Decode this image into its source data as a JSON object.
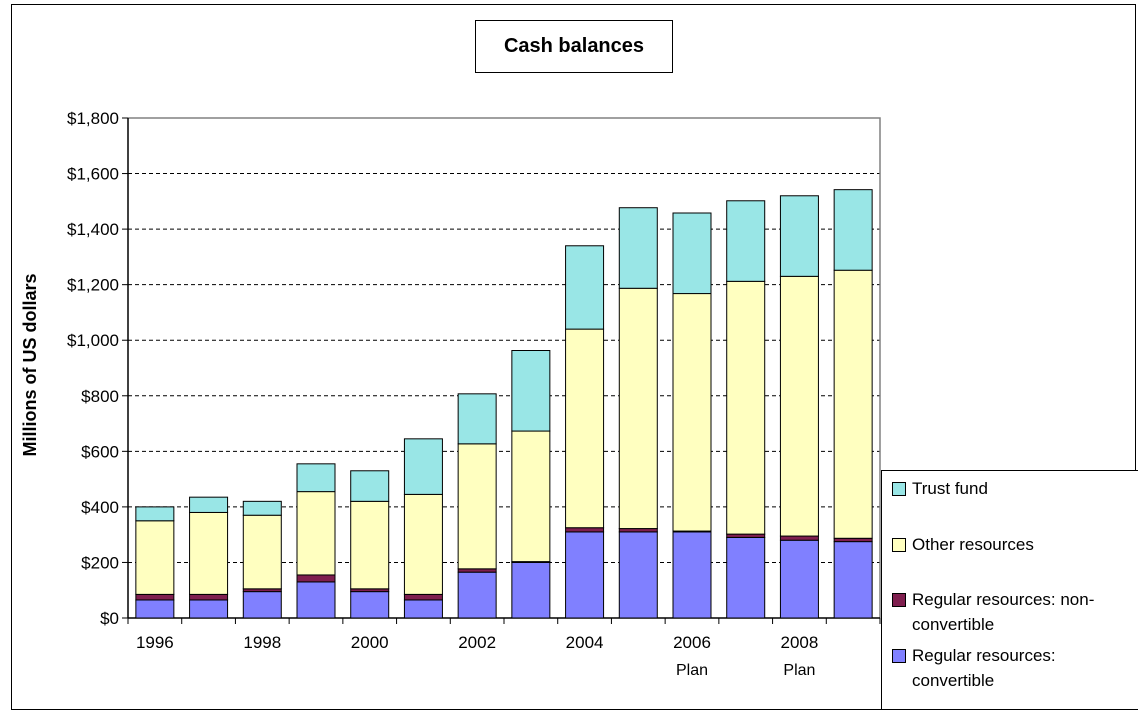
{
  "chart_data": {
    "type": "bar",
    "stacked": true,
    "title": "Cash balances",
    "ylabel": "Millions of US dollars",
    "ylim": [
      0,
      1800
    ],
    "yticks": [
      0,
      200,
      400,
      600,
      800,
      1000,
      1200,
      1400,
      1600,
      1800
    ],
    "ytick_labels": [
      "$0",
      "$200",
      "$400",
      "$600",
      "$800",
      "$1,000",
      "$1,200",
      "$1,400",
      "$1,600",
      "$1,800"
    ],
    "categories": [
      "1996",
      "1997",
      "1998",
      "1999",
      "2000",
      "2001",
      "2002",
      "2003",
      "2004",
      "2005",
      "2006",
      "2007",
      "2008",
      "2009"
    ],
    "xtick_labels": [
      "1996",
      "",
      "1998",
      "",
      "2000",
      "",
      "2002",
      "",
      "2004",
      "",
      "2006\nPlan",
      "",
      "2008\nPlan",
      ""
    ],
    "grid": true,
    "legend_position": "bottom-right",
    "series": [
      {
        "name": "Regular resources: convertible",
        "color": "#8080FF",
        "values": [
          65,
          65,
          95,
          130,
          95,
          65,
          165,
          200,
          310,
          310,
          310,
          290,
          280,
          275
        ]
      },
      {
        "name": "Regular resources: non-convertible",
        "color": "#7F1F4F",
        "values": [
          20,
          20,
          10,
          25,
          10,
          20,
          12,
          3,
          15,
          12,
          3,
          12,
          15,
          12
        ]
      },
      {
        "name": "Other resources",
        "color": "#FFFFC0",
        "values": [
          265,
          295,
          265,
          300,
          315,
          360,
          450,
          470,
          715,
          865,
          855,
          910,
          935,
          965
        ]
      },
      {
        "name": "Trust fund",
        "color": "#99E6E6",
        "values": [
          50,
          55,
          50,
          100,
          110,
          200,
          180,
          290,
          300,
          290,
          290,
          290,
          290,
          290
        ]
      }
    ]
  }
}
